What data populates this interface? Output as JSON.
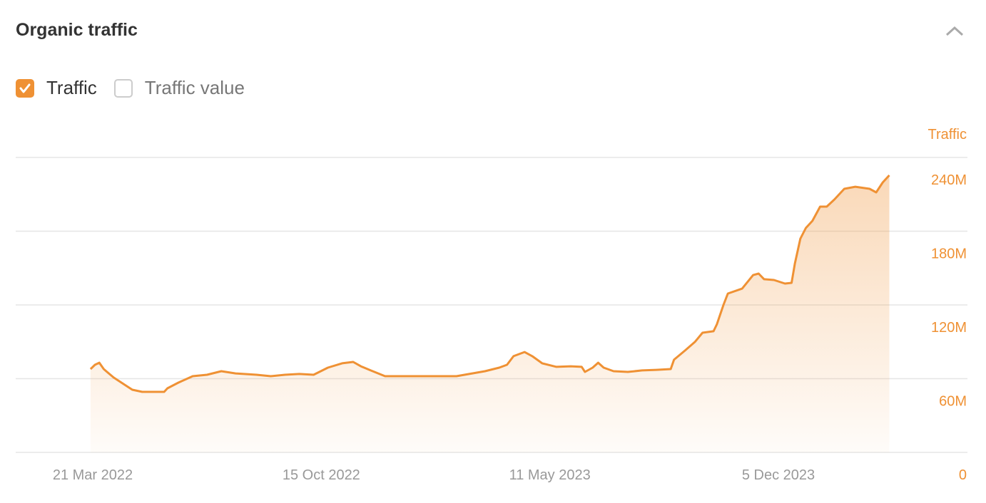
{
  "header": {
    "title": "Organic traffic",
    "collapse_icon": "chevron-up-icon"
  },
  "legend": [
    {
      "label": "Traffic",
      "checked": true
    },
    {
      "label": "Traffic value",
      "checked": false
    }
  ],
  "colors": {
    "accent": "#ef9134",
    "grid": "#e6e6e6",
    "x_tick": "#999999"
  },
  "chart_data": {
    "type": "area",
    "title": "",
    "ylabel": "Traffic",
    "ylim": [
      0,
      240000000
    ],
    "y_ticks": [
      {
        "value": 0,
        "label": "0"
      },
      {
        "value": 60000000,
        "label": "60M"
      },
      {
        "value": 120000000,
        "label": "120M"
      },
      {
        "value": 180000000,
        "label": "180M"
      },
      {
        "value": 240000000,
        "label": "240M"
      }
    ],
    "x_ticks": [
      {
        "date": "2022-03-21",
        "label": "21 Mar 2022"
      },
      {
        "date": "2022-10-15",
        "label": "15 Oct 2022"
      },
      {
        "date": "2023-05-11",
        "label": "11 May 2023"
      },
      {
        "date": "2023-12-05",
        "label": "5 Dec 2023"
      }
    ],
    "grid": true,
    "y_axis_position": "right",
    "series": [
      {
        "name": "Traffic",
        "x": [
          "2022-03-19",
          "2022-03-23",
          "2022-03-27",
          "2022-03-31",
          "2022-04-03",
          "2022-04-09",
          "2022-04-19",
          "2022-04-26",
          "2022-05-05",
          "2022-05-25",
          "2022-05-28",
          "2022-06-07",
          "2022-06-20",
          "2022-07-03",
          "2022-07-16",
          "2022-07-29",
          "2022-08-17",
          "2022-08-30",
          "2022-09-12",
          "2022-09-25",
          "2022-10-08",
          "2022-10-21",
          "2022-11-03",
          "2022-11-13",
          "2022-11-20",
          "2022-11-29",
          "2022-12-12",
          "2022-12-25",
          "2023-01-20",
          "2023-02-15",
          "2023-03-13",
          "2023-03-26",
          "2023-04-02",
          "2023-04-08",
          "2023-04-18",
          "2023-04-25",
          "2023-05-04",
          "2023-05-17",
          "2023-05-30",
          "2023-06-09",
          "2023-06-12",
          "2023-06-19",
          "2023-06-24",
          "2023-06-29",
          "2023-07-08",
          "2023-07-21",
          "2023-08-03",
          "2023-08-16",
          "2023-08-29",
          "2023-09-01",
          "2023-09-11",
          "2023-09-20",
          "2023-09-27",
          "2023-10-07",
          "2023-10-10",
          "2023-10-16",
          "2023-10-20",
          "2023-11-02",
          "2023-11-12",
          "2023-11-17",
          "2023-11-22",
          "2023-12-01",
          "2023-12-11",
          "2023-12-17",
          "2023-12-20",
          "2023-12-25",
          "2023-12-30",
          "2024-01-05",
          "2024-01-12",
          "2024-01-18",
          "2024-01-25",
          "2024-02-03",
          "2024-02-13",
          "2024-02-26",
          "2024-03-03",
          "2024-03-09",
          "2024-03-15"
        ],
        "values": [
          67800000,
          71300000,
          73000000,
          67800000,
          65500000,
          60900000,
          55100000,
          51000000,
          49300000,
          49300000,
          52200000,
          56800000,
          62000000,
          63200000,
          66100000,
          64300000,
          63200000,
          62000000,
          63200000,
          63800000,
          63200000,
          69000000,
          72500000,
          73600000,
          70100000,
          66700000,
          62000000,
          62000000,
          62000000,
          62000000,
          66100000,
          69000000,
          71300000,
          78300000,
          81700000,
          78300000,
          72500000,
          69600000,
          70100000,
          69600000,
          65500000,
          69000000,
          73000000,
          69000000,
          66100000,
          65500000,
          66700000,
          67200000,
          67800000,
          75400000,
          82900000,
          89900000,
          97400000,
          98600000,
          104300000,
          120000000,
          129300000,
          133300000,
          144300000,
          145500000,
          140900000,
          140300000,
          137400000,
          138000000,
          153600000,
          173900000,
          182600000,
          188400000,
          200000000,
          200000000,
          205800000,
          214500000,
          216200000,
          214500000,
          211600000,
          219700000,
          225500000
        ]
      }
    ]
  }
}
